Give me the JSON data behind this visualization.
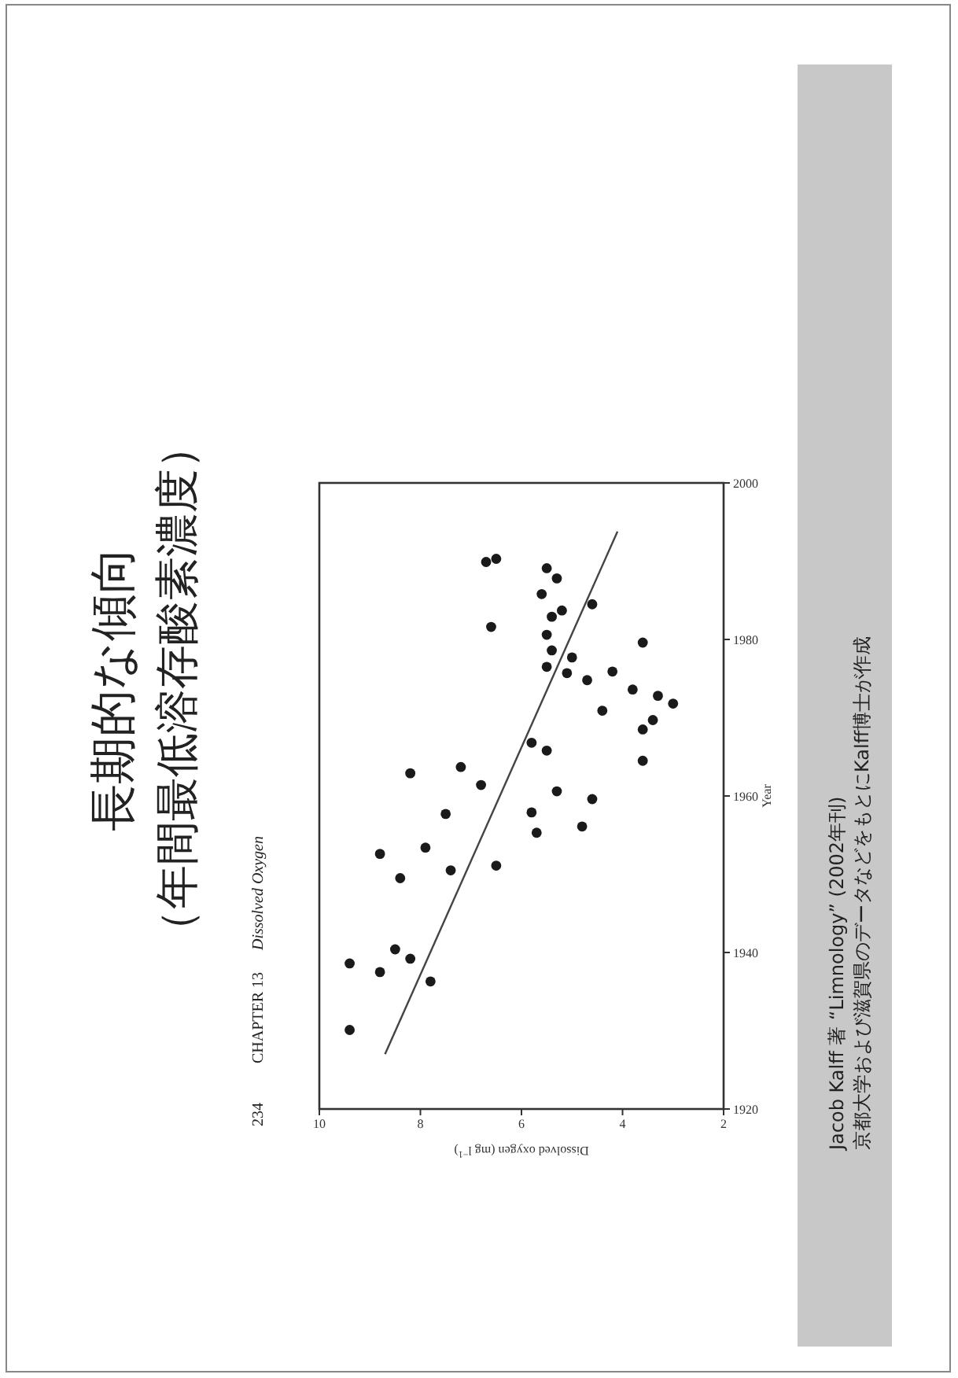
{
  "chart_data": {
    "type": "scatter",
    "title": "長期的な傾向",
    "subtitle": "（年間最低溶存酸素濃度）",
    "xlabel": "Dissolved oxygen (mg l$^{−1}$)",
    "ylabel": "Year",
    "annotations": [
      "234",
      "CHAPTER 13",
      "Dissolved Oxygen",
      "Jacob Kalff 著 “Limnology” (2002年刊)",
      "京都大学および滋賀県のデータなどをもとにKalff博士が作成"
    ],
    "xlim": [
      10,
      2
    ],
    "xticks": [
      10,
      8,
      6,
      4,
      2
    ],
    "ylim": [
      1920,
      2000
    ],
    "yticks": [
      1920,
      1940,
      1960,
      1980,
      2000
    ],
    "grid": false,
    "series": [
      {
        "type": "scatter",
        "marker": "circle",
        "color": "#1a1a1a",
        "values": [
          1962.9,
          1963.7,
          1961.4,
          1989.9,
          1990.3,
          1981.6,
          1989.1,
          1987.8,
          1985.8,
          1983.7,
          1982.9,
          1984.5,
          1980.6,
          1978.6,
          1977.7,
          1976.5,
          1975.7,
          1974.8,
          1975.9,
          1979.6,
          1973.6,
          1972.8,
          1971.8,
          1970.9,
          1969.7,
          1968.5,
          1966.8,
          1965.8,
          1964.5,
          1960.6,
          1959.6,
          1957.7,
          1957.9,
          1955.3,
          1956.1,
          1952.6,
          1953.4,
          1949.5,
          1950.5,
          1951.1,
          1940.4,
          1938.6,
          1939.2,
          1937.5,
          1936.3,
          1930.1
        ],
        "x": [
          8.2,
          7.2,
          6.8,
          6.7,
          6.5,
          6.6,
          5.5,
          5.3,
          5.6,
          5.2,
          5.4,
          4.6,
          5.5,
          5.4,
          5.0,
          5.5,
          5.1,
          4.7,
          4.2,
          3.6,
          3.8,
          3.3,
          3.0,
          4.4,
          3.4,
          3.6,
          5.8,
          5.5,
          3.6,
          5.3,
          4.6,
          7.5,
          5.8,
          5.7,
          4.8,
          8.8,
          7.9,
          8.4,
          7.4,
          6.5,
          8.5,
          9.4,
          8.2,
          8.8,
          7.8,
          9.4
        ]
      },
      {
        "type": "line",
        "color": "#444444",
        "x": [
          8.7,
          4.1
        ],
        "values": [
          1927.0,
          1993.8
        ]
      }
    ]
  }
}
